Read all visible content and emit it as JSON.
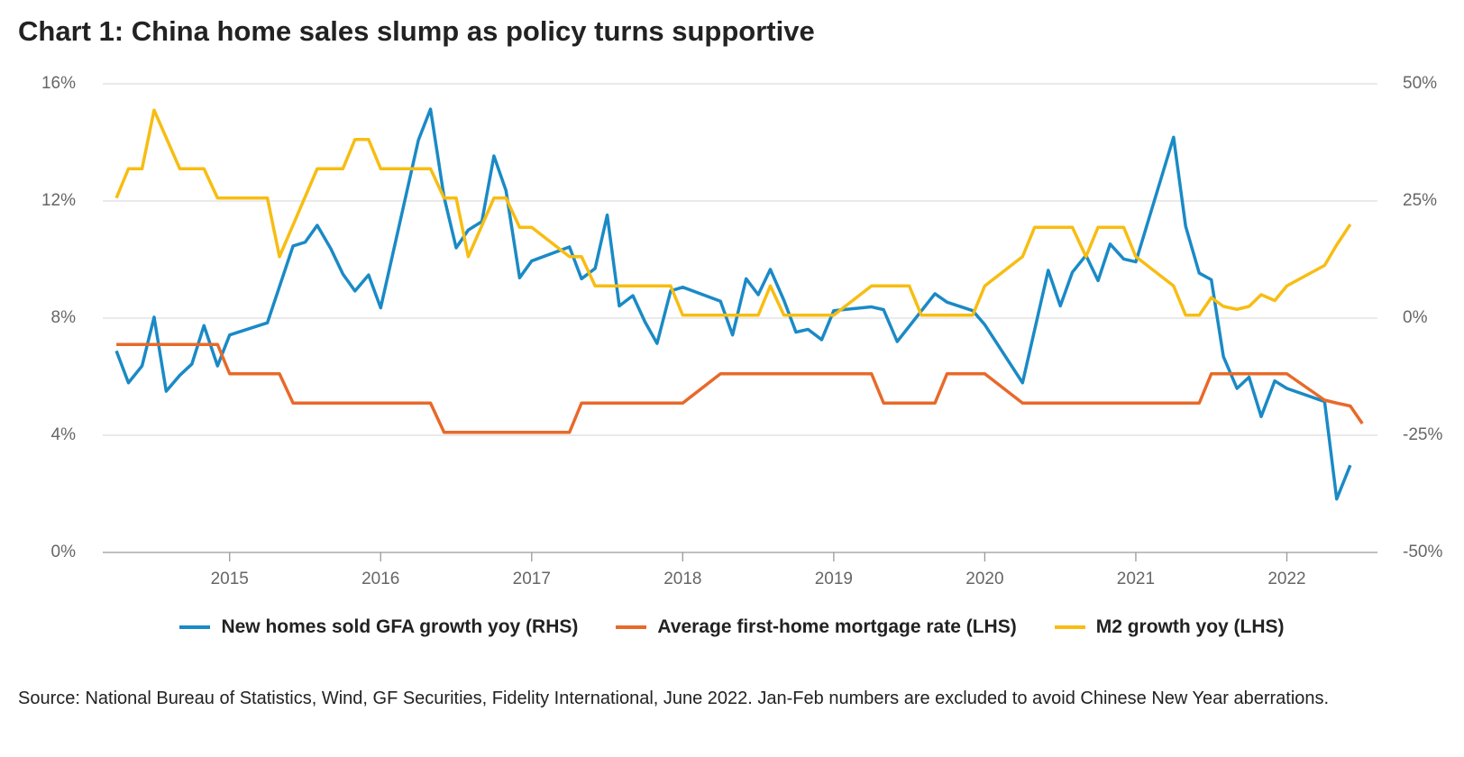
{
  "chart_data": {
    "type": "line",
    "title": "Chart 1: China home sales slump as policy turns supportive",
    "source": "Source: National Bureau of Statistics, Wind, GF Securities, Fidelity International, June 2022. Jan-Feb numbers are excluded to avoid Chinese New Year aberrations.",
    "xlim": [
      2014.16,
      2022.6
    ],
    "xticks": [
      2015,
      2016,
      2017,
      2018,
      2019,
      2020,
      2021,
      2022
    ],
    "ylim": [
      0,
      16
    ],
    "yticks": [
      {
        "value": 0,
        "label": "0%"
      },
      {
        "value": 4,
        "label": "4%"
      },
      {
        "value": 8,
        "label": "8%"
      },
      {
        "value": 12,
        "label": "12%"
      },
      {
        "value": 16,
        "label": "16%"
      }
    ],
    "y2lim": [
      -50,
      50
    ],
    "y2ticks": [
      {
        "value": -50,
        "label": "-50%"
      },
      {
        "value": -25,
        "label": "-25%"
      },
      {
        "value": 0,
        "label": "0%"
      },
      {
        "value": 25,
        "label": "25%"
      },
      {
        "value": 50,
        "label": "50%"
      }
    ],
    "grid": true,
    "series": [
      {
        "name": "New homes sold GFA growth yoy (RHS)",
        "color": "#1a8ac6",
        "axis": "y2",
        "x": [
          2014.25,
          2014.33,
          2014.42,
          2014.5,
          2014.58,
          2014.67,
          2014.75,
          2014.83,
          2014.92,
          2015,
          2015.25,
          2015.42,
          2015.5,
          2015.58,
          2015.67,
          2015.75,
          2015.83,
          2015.92,
          2016,
          2016.25,
          2016.33,
          2016.42,
          2016.5,
          2016.58,
          2016.67,
          2016.75,
          2016.83,
          2016.92,
          2017,
          2017.25,
          2017.33,
          2017.42,
          2017.5,
          2017.58,
          2017.67,
          2017.75,
          2017.83,
          2017.92,
          2018,
          2018.25,
          2018.33,
          2018.42,
          2018.5,
          2018.58,
          2018.67,
          2018.75,
          2018.83,
          2018.92,
          2019,
          2019.25,
          2019.33,
          2019.42,
          2019.67,
          2019.75,
          2019.92,
          2020,
          2020.25,
          2020.42,
          2020.5,
          2020.58,
          2020.67,
          2020.75,
          2020.83,
          2020.92,
          2021,
          2021.25,
          2021.33,
          2021.42,
          2021.5,
          2021.58,
          2021.67,
          2021.75,
          2021.83,
          2021.92,
          2022,
          2022.25,
          2022.33,
          2022.42
        ],
        "values": [
          -7,
          -13.8,
          -10.2,
          0.2,
          -15.6,
          -12.2,
          -9.8,
          -1.6,
          -10.2,
          -3.6,
          -1,
          15.4,
          16.2,
          19.8,
          14.8,
          9.4,
          5.8,
          9.2,
          2.2,
          38,
          44.6,
          25.8,
          15,
          18.8,
          20.6,
          34.6,
          27.2,
          8.6,
          12.2,
          15.2,
          8.4,
          10.6,
          22,
          2.6,
          4.8,
          -0.8,
          -5.4,
          5.8,
          6.6,
          3.6,
          -3.6,
          8.4,
          5,
          10.4,
          3.8,
          -3,
          -2.4,
          -4.6,
          1.6,
          2.4,
          1.8,
          -5,
          5.2,
          3.4,
          1.6,
          -1.4,
          -13.8,
          10.2,
          2.6,
          9.8,
          13.4,
          8,
          15.8,
          12.6,
          12,
          38.6,
          19.6,
          9.6,
          8.2,
          -8.2,
          -15,
          -12.6,
          -21,
          -13.4,
          -15,
          -17.8,
          -38.6,
          -31.4
        ]
      },
      {
        "name": "Average first-home mortgage rate (LHS)",
        "color": "#e8692a",
        "x": [
          2014.25,
          2014.92,
          2015,
          2015.33,
          2015.42,
          2016.33,
          2016.42,
          2017.25,
          2017.33,
          2018,
          2018.25,
          2019.25,
          2019.33,
          2019.67,
          2019.75,
          2020,
          2020.25,
          2021.42,
          2021.5,
          2022,
          2022.25,
          2022.33,
          2022.42,
          2022.5
        ],
        "values": [
          7.1,
          7.1,
          6.1,
          6.1,
          5.1,
          5.1,
          4.1,
          4.1,
          5.1,
          5.1,
          6.1,
          6.1,
          5.1,
          5.1,
          6.1,
          6.1,
          5.1,
          5.1,
          6.1,
          6.1,
          5.2,
          5.1,
          5.0,
          4.4
        ]
      },
      {
        "name": "M2 growth yoy (LHS)",
        "color": "#f7bd12",
        "x": [
          2014.25,
          2014.33,
          2014.42,
          2014.5,
          2014.67,
          2014.83,
          2014.92,
          2015.25,
          2015.33,
          2015.58,
          2015.75,
          2015.83,
          2015.92,
          2016,
          2016.33,
          2016.42,
          2016.5,
          2016.58,
          2016.75,
          2016.83,
          2016.92,
          2017,
          2017.25,
          2017.33,
          2017.42,
          2017.92,
          2018,
          2018.5,
          2018.58,
          2018.67,
          2019,
          2019.25,
          2019.5,
          2019.58,
          2019.92,
          2020,
          2020.25,
          2020.33,
          2020.58,
          2020.67,
          2020.75,
          2020.92,
          2021,
          2021.25,
          2021.33,
          2021.42,
          2021.5,
          2021.58,
          2021.67,
          2021.75,
          2021.83,
          2021.92,
          2022,
          2022.25,
          2022.33,
          2022.42
        ],
        "values": [
          12.1,
          13.1,
          13.1,
          15.1,
          13.1,
          13.1,
          12.1,
          12.1,
          10.1,
          13.1,
          13.1,
          14.1,
          14.1,
          13.1,
          13.1,
          12.1,
          12.1,
          10.1,
          12.1,
          12.1,
          11.1,
          11.1,
          10.1,
          10.1,
          9.1,
          9.1,
          8.1,
          8.1,
          9.1,
          8.1,
          8.1,
          9.1,
          9.1,
          8.1,
          8.1,
          9.1,
          10.1,
          11.1,
          11.1,
          10.1,
          11.1,
          11.1,
          10.1,
          9.1,
          8.1,
          8.1,
          8.7,
          8.4,
          8.3,
          8.4,
          8.8,
          8.6,
          9.1,
          9.8,
          10.5,
          11.2
        ]
      }
    ]
  }
}
